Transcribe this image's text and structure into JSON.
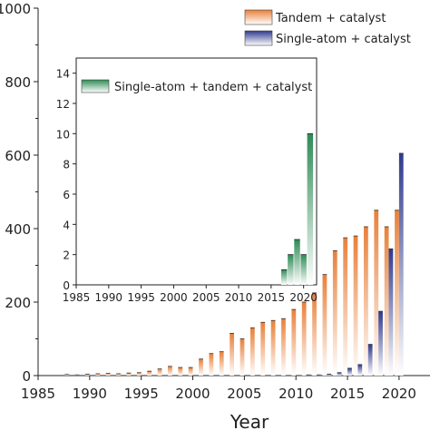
{
  "chart_data": [
    {
      "type": "bar",
      "xlabel": "Year",
      "ylabel": "",
      "xlim": [
        1985,
        2023
      ],
      "ylim": [
        0,
        1000
      ],
      "x_ticks": [
        "1985",
        "1990",
        "1995",
        "2000",
        "2005",
        "2010",
        "2015",
        "2020"
      ],
      "y_ticks": [
        "0",
        "200",
        "400",
        "600",
        "800",
        "1000"
      ],
      "legend_position": "top-right",
      "series": [
        {
          "name": "Tandem + catalyst",
          "color": "#e8803a",
          "x": [
            1988,
            1989,
            1990,
            1991,
            1992,
            1993,
            1994,
            1995,
            1996,
            1997,
            1998,
            1999,
            2000,
            2001,
            2002,
            2003,
            2004,
            2005,
            2006,
            2007,
            2008,
            2009,
            2010,
            2011,
            2012,
            2013,
            2014,
            2015,
            2016,
            2017,
            2018,
            2019,
            2020
          ],
          "values": [
            3,
            2,
            4,
            5,
            6,
            5,
            7,
            8,
            12,
            18,
            25,
            22,
            22,
            45,
            60,
            65,
            115,
            100,
            130,
            145,
            150,
            155,
            180,
            200,
            225,
            275,
            340,
            375,
            380,
            405,
            450,
            405,
            450
          ]
        },
        {
          "name": "Single-atom + catalyst",
          "color": "#2e3a8c",
          "x": [
            2011,
            2012,
            2013,
            2014,
            2015,
            2016,
            2017,
            2018,
            2019,
            2020
          ],
          "values": [
            1,
            2,
            4,
            8,
            20,
            30,
            85,
            175,
            345,
            605
          ]
        }
      ]
    },
    {
      "type": "bar",
      "xlabel": "",
      "ylabel": "",
      "xlim": [
        1985,
        2022
      ],
      "ylim": [
        0,
        15
      ],
      "x_ticks": [
        "1985",
        "1990",
        "1995",
        "2000",
        "2005",
        "2010",
        "2015",
        "2020"
      ],
      "y_ticks": [
        "0",
        "2",
        "4",
        "6",
        "8",
        "10",
        "12",
        "14"
      ],
      "legend_position": "top-left",
      "series": [
        {
          "name": "Single-atom + tandem + catalyst",
          "color": "#2e8b57",
          "x": [
            2017,
            2018,
            2019,
            2020,
            2021
          ],
          "values": [
            1,
            2,
            3,
            2,
            10
          ]
        }
      ]
    }
  ]
}
